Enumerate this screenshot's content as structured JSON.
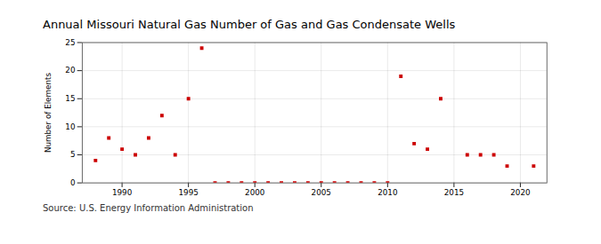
{
  "chart_data": {
    "type": "scatter",
    "title": "Annual Missouri Natural Gas Number of Gas and Gas Condensate Wells",
    "ylabel": "Number of Elements",
    "source": "Source: U.S. Energy Information Administration",
    "x": [
      1988,
      1989,
      1990,
      1991,
      1992,
      1993,
      1994,
      1995,
      1996,
      1997,
      1998,
      1999,
      2000,
      2001,
      2002,
      2003,
      2004,
      2005,
      2006,
      2007,
      2008,
      2009,
      2010,
      2011,
      2012,
      2013,
      2014,
      2016,
      2017,
      2018,
      2019,
      2021
    ],
    "values": [
      4,
      8,
      6,
      5,
      8,
      12,
      5,
      15,
      24,
      0,
      0,
      0,
      0,
      0,
      0,
      0,
      0,
      0,
      0,
      0,
      0,
      0,
      0,
      19,
      7,
      6,
      15,
      5,
      5,
      5,
      3,
      3
    ],
    "color": "#cc0000",
    "marker": "square",
    "xlim": [
      1987,
      2022
    ],
    "xticks": [
      1990,
      1995,
      2000,
      2005,
      2010,
      2015,
      2020
    ],
    "ylim": [
      0,
      25
    ],
    "yticks": [
      0,
      5,
      10,
      15,
      20,
      25
    ],
    "grid": true
  }
}
